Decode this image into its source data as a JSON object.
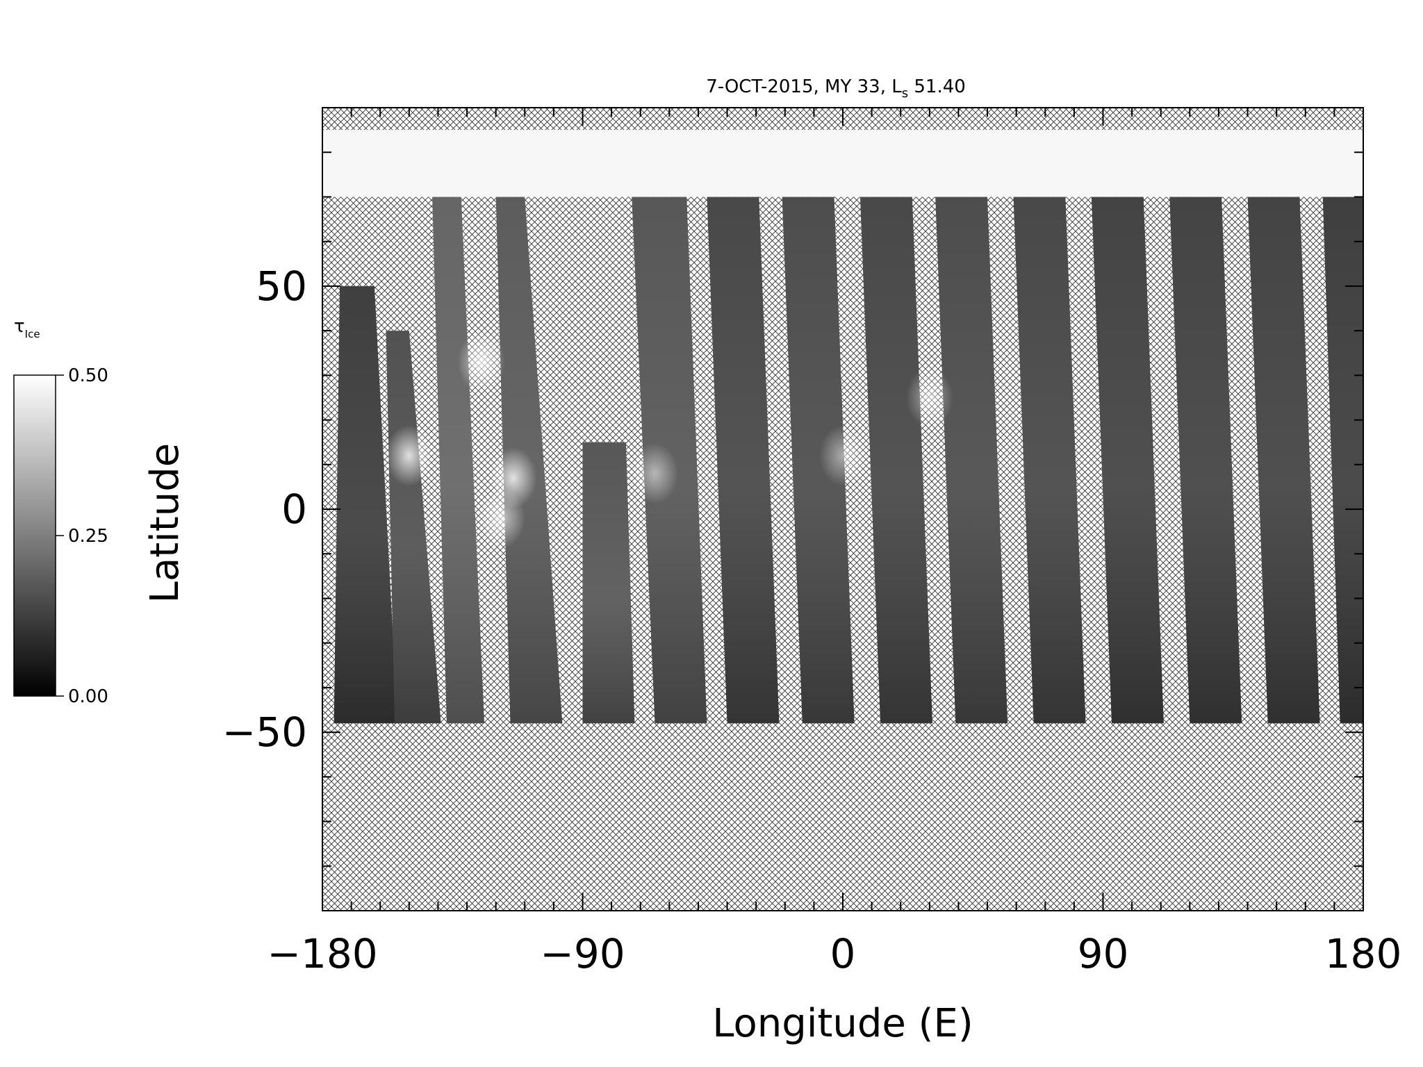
{
  "chart_data": {
    "type": "heatmap",
    "title_main": "7-OCT-2015, MY 33,  L",
    "title_sub": "s",
    "title_value": " 51.40",
    "xlabel": "Longitude (E)",
    "ylabel": "Latitude",
    "xlim": [
      -180,
      180
    ],
    "ylim": [
      -90,
      90
    ],
    "xticks_major": [
      -180,
      -90,
      0,
      90,
      180
    ],
    "xtick_labels": [
      "−180",
      "−90",
      "0",
      "90",
      "180"
    ],
    "xticks_minor_step": 10,
    "yticks_major": [
      -50,
      0,
      50
    ],
    "ytick_labels": [
      "−50",
      "0",
      "50"
    ],
    "yticks_minor_step": 10,
    "colorbar": {
      "label_main": "τ",
      "label_sub": "Ice",
      "min": 0.0,
      "max": 0.5,
      "ticks": [
        0.0,
        0.25,
        0.5
      ],
      "tick_labels": [
        "0.00",
        "0.25",
        "0.50"
      ],
      "low_color": "#000000",
      "high_color": "#ffffff"
    },
    "polar_cap": {
      "lat_min": 70,
      "lat_max": 85,
      "value": 0.5
    },
    "no_data_above_lat": 85,
    "no_data_below_lat": -48,
    "swaths": [
      {
        "top_lon_w": -174,
        "top_lon_e": -162,
        "bottom_lon_w": -176,
        "bottom_lon_e": -154,
        "lat_top": 50,
        "lat_bottom": -48,
        "mean_tau": 0.1
      },
      {
        "top_lon_w": -158,
        "top_lon_e": -150,
        "bottom_lon_w": -155,
        "bottom_lon_e": -139,
        "lat_top": 40,
        "lat_bottom": -48,
        "mean_tau": 0.14
      },
      {
        "top_lon_w": -142,
        "top_lon_e": -132,
        "bottom_lon_w": -137,
        "bottom_lon_e": -124,
        "lat_top": 70,
        "lat_bottom": -48,
        "mean_tau": 0.18
      },
      {
        "top_lon_w": -120,
        "top_lon_e": -110,
        "bottom_lon_w": -115,
        "bottom_lon_e": -97,
        "lat_top": 70,
        "lat_bottom": -48,
        "mean_tau": 0.16
      },
      {
        "top_lon_w": -90,
        "top_lon_e": -75,
        "bottom_lon_w": -90,
        "bottom_lon_e": -72,
        "lat_top": 15,
        "lat_bottom": -48,
        "mean_tau": 0.15
      },
      {
        "top_lon_w": -73,
        "top_lon_e": -54,
        "bottom_lon_w": -65,
        "bottom_lon_e": -47,
        "lat_top": 70,
        "lat_bottom": -48,
        "mean_tau": 0.15
      },
      {
        "top_lon_w": -47,
        "top_lon_e": -29,
        "bottom_lon_w": -40,
        "bottom_lon_e": -22,
        "lat_top": 70,
        "lat_bottom": -48,
        "mean_tau": 0.12
      },
      {
        "top_lon_w": -21,
        "top_lon_e": -3,
        "bottom_lon_w": -14,
        "bottom_lon_e": 4,
        "lat_top": 70,
        "lat_bottom": -48,
        "mean_tau": 0.13
      },
      {
        "top_lon_w": 6,
        "top_lon_e": 24,
        "bottom_lon_w": 13,
        "bottom_lon_e": 31,
        "lat_top": 70,
        "lat_bottom": -48,
        "mean_tau": 0.12
      },
      {
        "top_lon_w": 32,
        "top_lon_e": 50,
        "bottom_lon_w": 39,
        "bottom_lon_e": 57,
        "lat_top": 70,
        "lat_bottom": -48,
        "mean_tau": 0.13
      },
      {
        "top_lon_w": 59,
        "top_lon_e": 77,
        "bottom_lon_w": 66,
        "bottom_lon_e": 84,
        "lat_top": 70,
        "lat_bottom": -48,
        "mean_tau": 0.12
      },
      {
        "top_lon_w": 86,
        "top_lon_e": 104,
        "bottom_lon_w": 93,
        "bottom_lon_e": 111,
        "lat_top": 70,
        "lat_bottom": -48,
        "mean_tau": 0.11
      },
      {
        "top_lon_w": 113,
        "top_lon_e": 131,
        "bottom_lon_w": 120,
        "bottom_lon_e": 138,
        "lat_top": 70,
        "lat_bottom": -48,
        "mean_tau": 0.11
      },
      {
        "top_lon_w": 140,
        "top_lon_e": 158,
        "bottom_lon_w": 147,
        "bottom_lon_e": 165,
        "lat_top": 70,
        "lat_bottom": -48,
        "mean_tau": 0.11
      },
      {
        "top_lon_w": 166,
        "top_lon_e": 180,
        "bottom_lon_w": 172,
        "bottom_lon_e": 180,
        "lat_top": 70,
        "lat_bottom": -48,
        "mean_tau": 0.1
      }
    ],
    "cloud_patches": [
      {
        "lon": -150,
        "lat": 12,
        "tau": 0.45
      },
      {
        "lon": -125,
        "lat": 33,
        "tau": 0.4
      },
      {
        "lon": -114,
        "lat": 7,
        "tau": 0.45
      },
      {
        "lon": -118,
        "lat": -2,
        "tau": 0.35
      },
      {
        "lon": -65,
        "lat": 8,
        "tau": 0.3
      },
      {
        "lon": 0,
        "lat": 12,
        "tau": 0.28
      },
      {
        "lon": 30,
        "lat": 25,
        "tau": 0.28
      }
    ]
  }
}
